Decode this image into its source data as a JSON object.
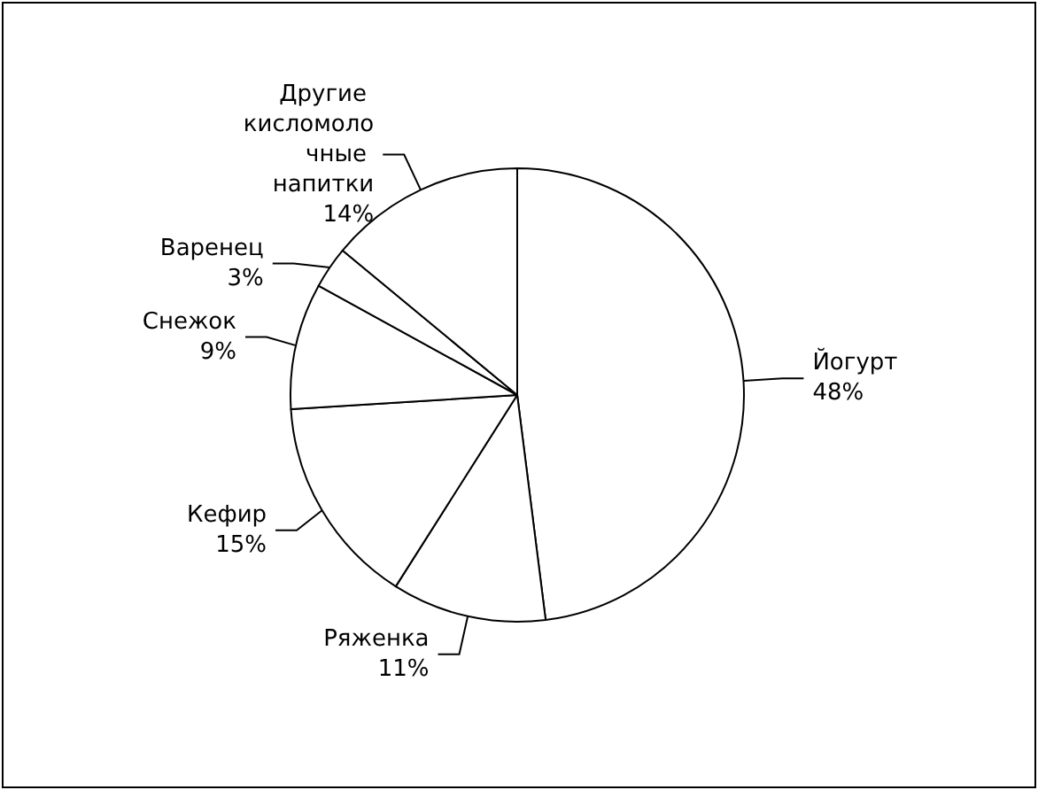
{
  "chart_data": {
    "type": "pie",
    "categories": [
      "Йогурт",
      "Ряженка",
      "Кефир",
      "Снежок",
      "Варенец",
      "Другие кисломолочные напитки"
    ],
    "values": [
      48,
      11,
      15,
      9,
      3,
      14
    ],
    "colors": [
      "#ffffff",
      "#ffffff",
      "#ffffff",
      "#ffffff",
      "#ffffff",
      "#ffffff"
    ],
    "value_labels": [
      "48%",
      "11%",
      "15%",
      "9%",
      "3%",
      "14%"
    ],
    "legend": false
  }
}
